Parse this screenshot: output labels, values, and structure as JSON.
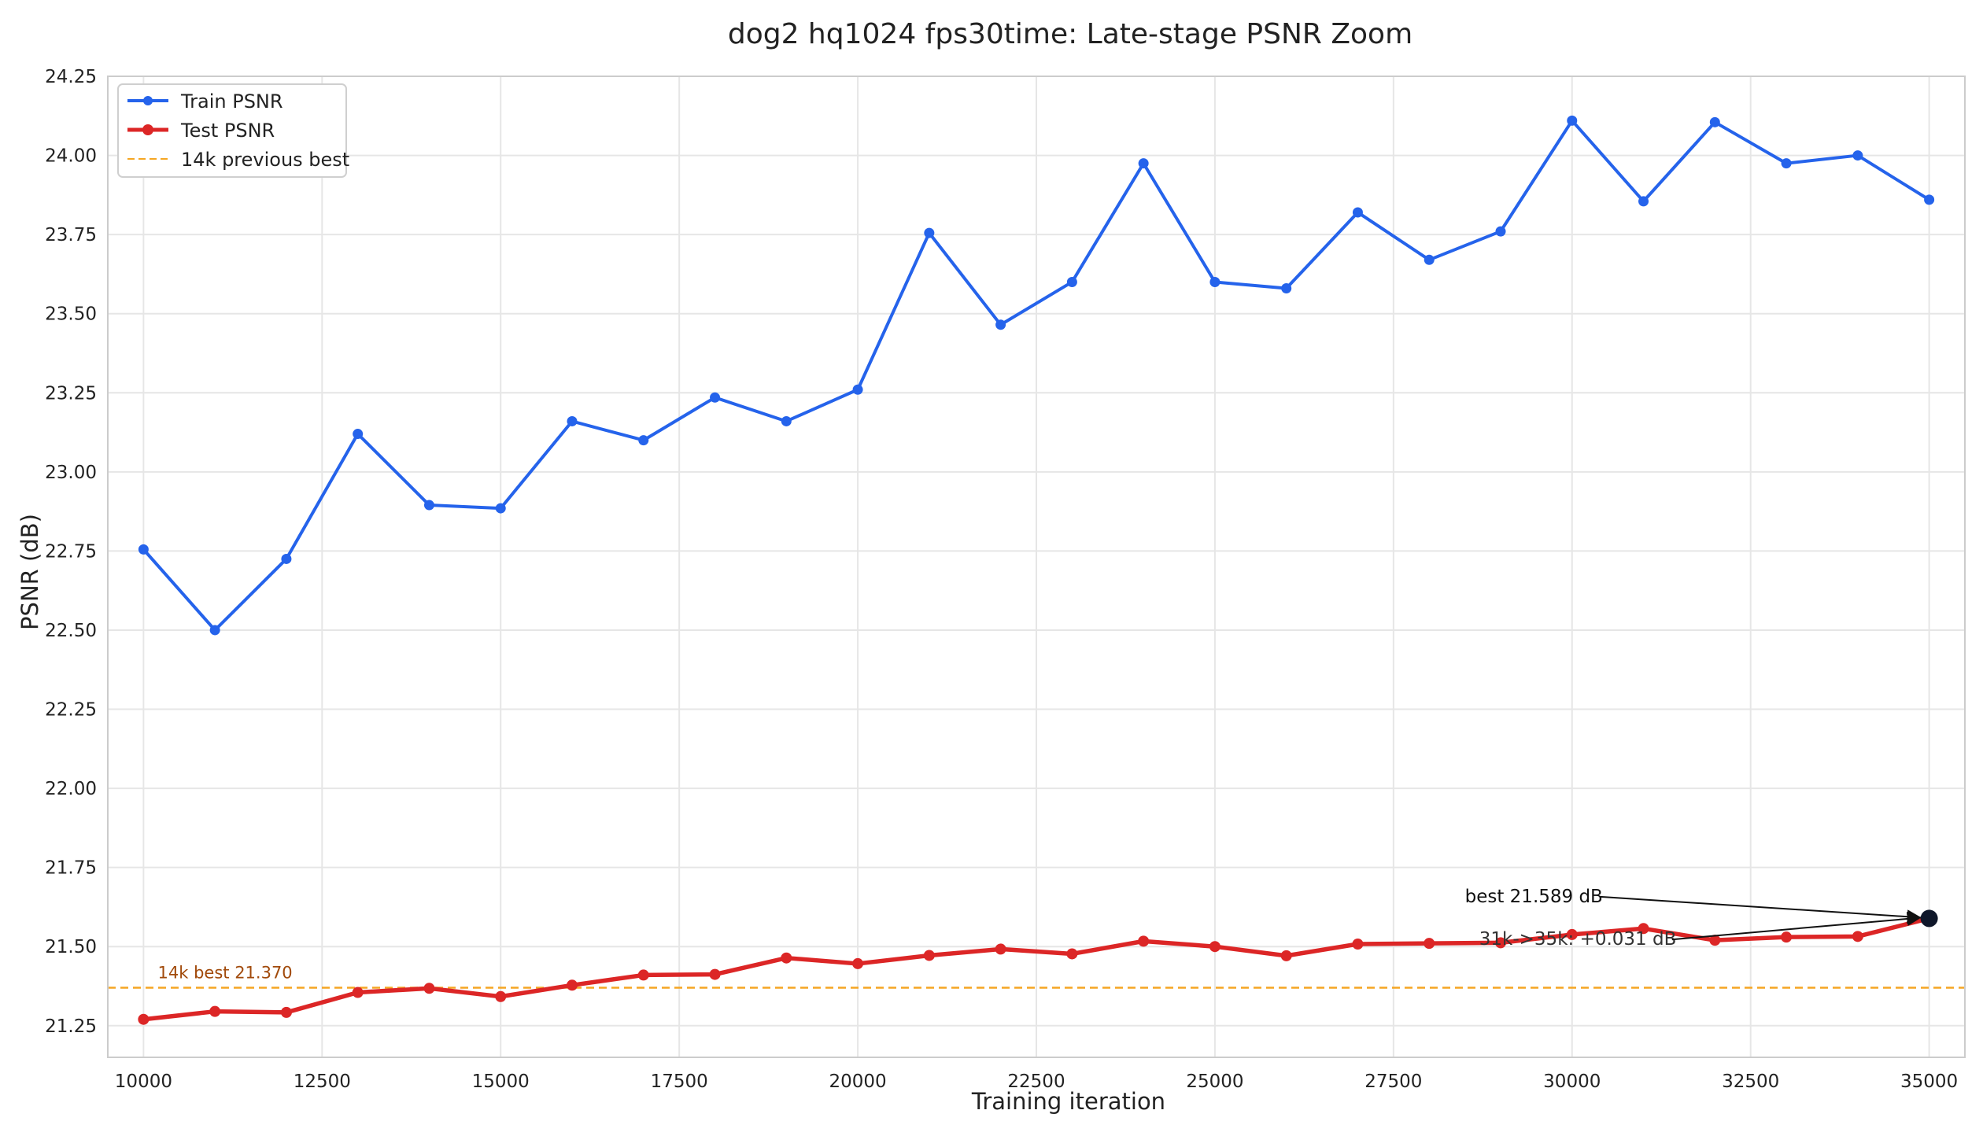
{
  "chart_data": {
    "type": "line",
    "title": "dog2 hq1024 fps30time: Late-stage PSNR Zoom",
    "xlabel": "Training iteration",
    "ylabel": "PSNR (dB)",
    "xlim": [
      9500,
      35500
    ],
    "ylim": [
      21.15,
      24.25
    ],
    "xticks": [
      10000,
      12500,
      15000,
      17500,
      20000,
      22500,
      25000,
      27500,
      30000,
      32500,
      35000
    ],
    "yticks": [
      21.25,
      21.5,
      21.75,
      22.0,
      22.25,
      22.5,
      22.75,
      23.0,
      23.25,
      23.5,
      23.75,
      24.0,
      24.25
    ],
    "grid": true,
    "legend_position": "top-left",
    "x": [
      10000,
      11000,
      12000,
      13000,
      14000,
      15000,
      16000,
      17000,
      18000,
      19000,
      20000,
      21000,
      22000,
      23000,
      24000,
      25000,
      26000,
      27000,
      28000,
      29000,
      30000,
      31000,
      32000,
      33000,
      34000,
      35000
    ],
    "series": [
      {
        "name": "Train PSNR",
        "color": "#2563eb",
        "values": [
          22.755,
          22.5,
          22.725,
          23.12,
          22.895,
          22.885,
          23.16,
          23.1,
          23.235,
          23.16,
          23.26,
          23.755,
          23.465,
          23.6,
          23.975,
          23.6,
          23.58,
          23.82,
          23.67,
          23.76,
          24.11,
          23.855,
          24.105,
          23.975,
          24.0,
          23.86
        ]
      },
      {
        "name": "Test PSNR",
        "color": "#dc2626",
        "values": [
          21.27,
          21.295,
          21.292,
          21.355,
          21.368,
          21.342,
          21.378,
          21.41,
          21.412,
          21.464,
          21.446,
          21.472,
          21.492,
          21.477,
          21.517,
          21.5,
          21.471,
          21.508,
          21.51,
          21.512,
          21.538,
          21.557,
          21.52,
          21.53,
          21.532,
          21.589
        ]
      }
    ],
    "reference_line": {
      "name": "14k previous best",
      "y": 21.37,
      "color": "#f5a623",
      "label": "14k best 21.370",
      "label_x": 10200
    },
    "annotations": [
      {
        "text": "best 21.589 dB",
        "text_x": 28500,
        "text_y": 21.64,
        "target_x": 35000,
        "target_y": 21.589
      },
      {
        "text": "31k->35k: +0.031 dB",
        "text_x": 28700,
        "text_y": 21.505,
        "target_x": 35000,
        "target_y": 21.589
      }
    ],
    "best_marker_color": "#0f172a"
  }
}
